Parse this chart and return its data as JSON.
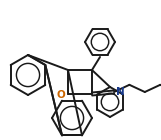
{
  "background": "#ffffff",
  "line_color": "#1a1a1a",
  "line_width": 1.4,
  "o_color": "#cc6600",
  "n_color": "#1a3a8a",
  "text_o": "O",
  "text_n": "N",
  "figsize": [
    1.61,
    1.4
  ],
  "dpi": 100
}
